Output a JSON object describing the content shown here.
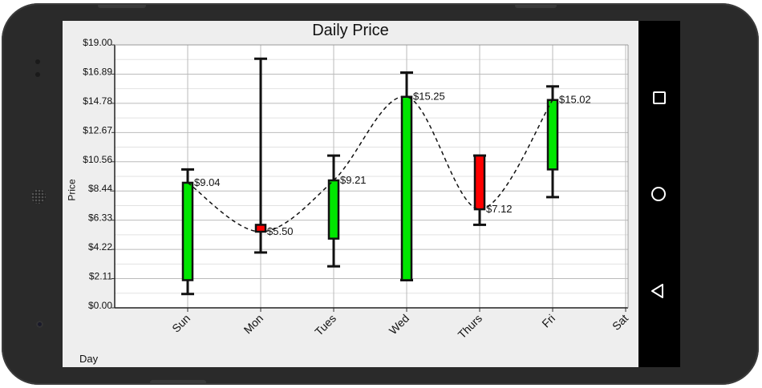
{
  "chart_data": {
    "type": "candlestick",
    "title": "Daily Price",
    "xlabel": "Day",
    "ylabel": "Price",
    "ylim": [
      0,
      19
    ],
    "yticks": [
      "$0.00",
      "$2.11",
      "$4.22",
      "$6.33",
      "$8.44",
      "$10.56",
      "$12.67",
      "$14.78",
      "$16.89",
      "$19.00"
    ],
    "categories": [
      "Sun",
      "Mon",
      "Tues",
      "Wed",
      "Thurs",
      "Fri",
      "Sat"
    ],
    "candles": [
      {
        "day": "Sun",
        "open": 2.0,
        "close": 9.04,
        "low": 1.0,
        "high": 10.0,
        "color": "#00e600"
      },
      {
        "day": "Mon",
        "open": 6.0,
        "close": 5.5,
        "low": 4.0,
        "high": 18.0,
        "color": "#ff0000"
      },
      {
        "day": "Tues",
        "open": 5.0,
        "close": 9.21,
        "low": 3.0,
        "high": 11.0,
        "color": "#00e600"
      },
      {
        "day": "Wed",
        "open": 2.0,
        "close": 15.25,
        "low": 2.0,
        "high": 17.0,
        "color": "#00e600"
      },
      {
        "day": "Thurs",
        "open": 11.0,
        "close": 7.12,
        "low": 6.0,
        "high": 11.0,
        "color": "#ff0000"
      },
      {
        "day": "Fri",
        "open": 10.0,
        "close": 15.02,
        "low": 8.0,
        "high": 16.0,
        "color": "#00e600"
      }
    ],
    "data_labels": [
      "$9.04",
      "$5.50",
      "$9.21",
      "$15.25",
      "$7.12",
      "$15.02"
    ],
    "trend_line": "dashed spline through close values",
    "grid": true
  }
}
